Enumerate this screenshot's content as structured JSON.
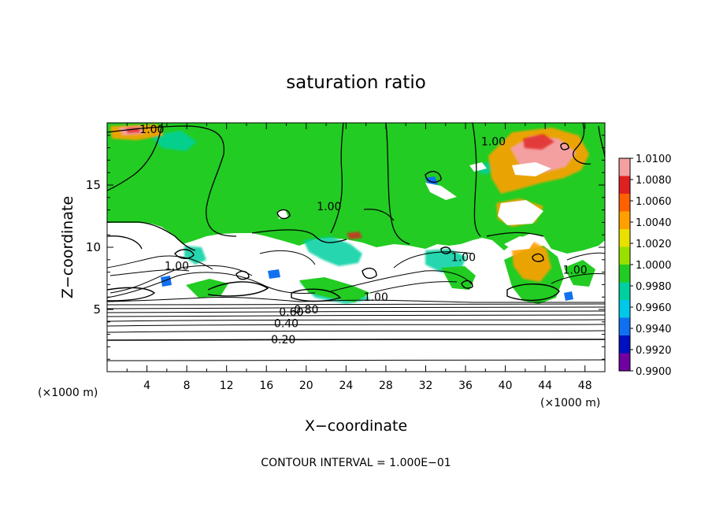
{
  "chart_data": {
    "type": "heatmap",
    "title": "saturation ratio",
    "xlabel": "X−coordinate",
    "ylabel": "Z−coordinate",
    "x_unit_note_left": "(×1000 m)",
    "x_unit_note_right": "(×1000 m)",
    "footer": "CONTOUR INTERVAL = 1.000E−01",
    "xlim": [
      0,
      50
    ],
    "ylim": [
      0,
      20
    ],
    "x_ticks": [
      4,
      8,
      12,
      16,
      20,
      24,
      28,
      32,
      36,
      40,
      44,
      48
    ],
    "y_ticks": [
      5,
      10,
      15
    ],
    "colorbar": {
      "levels": [
        "1.0100",
        "1.0080",
        "1.0060",
        "1.0040",
        "1.0020",
        "1.0000",
        "0.9980",
        "0.9960",
        "0.9940",
        "0.9920",
        "0.9900"
      ],
      "colors": [
        "#f4a0a0",
        "#e02020",
        "#ff6000",
        "#ffa000",
        "#e8e000",
        "#98e000",
        "#22cc22",
        "#00d0a0",
        "#00c8e8",
        "#1070f0",
        "#0010c0",
        "#7000a0"
      ]
    },
    "contour_labels": [
      {
        "text": "1.00",
        "x": 4.5,
        "z": 19.5
      },
      {
        "text": "1.00",
        "x": 38.8,
        "z": 18.5
      },
      {
        "text": "1.00",
        "x": 22.3,
        "z": 13.3
      },
      {
        "text": "1.00",
        "x": 7.0,
        "z": 8.5
      },
      {
        "text": "1.00",
        "x": 35.8,
        "z": 9.2
      },
      {
        "text": "1.00",
        "x": 27.0,
        "z": 6.0
      },
      {
        "text": "1.00",
        "x": 47.0,
        "z": 8.2
      },
      {
        "text": "0.80",
        "x": 20.0,
        "z": 5.0
      },
      {
        "text": "0.60",
        "x": 18.5,
        "z": 4.8
      },
      {
        "text": "0.40",
        "x": 18.0,
        "z": 3.9
      },
      {
        "text": "0.20",
        "x": 17.7,
        "z": 2.6
      }
    ]
  }
}
